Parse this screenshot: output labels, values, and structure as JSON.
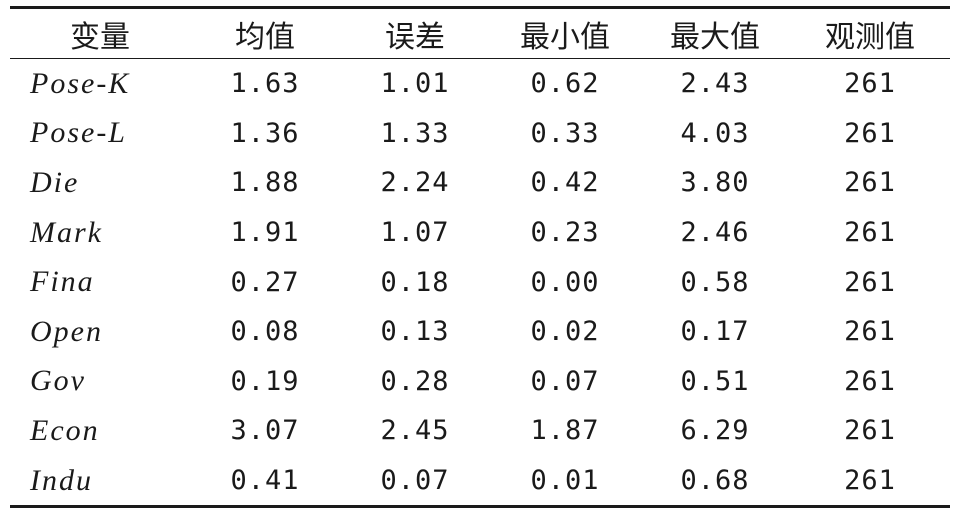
{
  "table": {
    "headers": [
      "变量",
      "均值",
      "误差",
      "最小值",
      "最大值",
      "观测值"
    ],
    "rows": [
      [
        "Pose-K",
        "1.63",
        "1.01",
        "0.62",
        "2.43",
        "261"
      ],
      [
        "Pose-L",
        "1.36",
        "1.33",
        "0.33",
        "4.03",
        "261"
      ],
      [
        "Die",
        "1.88",
        "2.24",
        "0.42",
        "3.80",
        "261"
      ],
      [
        "Mark",
        "1.91",
        "1.07",
        "0.23",
        "2.46",
        "261"
      ],
      [
        "Fina",
        "0.27",
        "0.18",
        "0.00",
        "0.58",
        "261"
      ],
      [
        "Open",
        "0.08",
        "0.13",
        "0.02",
        "0.17",
        "261"
      ],
      [
        "Gov",
        "0.19",
        "0.28",
        "0.07",
        "0.51",
        "261"
      ],
      [
        "Econ",
        "3.07",
        "2.45",
        "1.87",
        "6.29",
        "261"
      ],
      [
        "Indu",
        "0.41",
        "0.07",
        "0.01",
        "0.68",
        "261"
      ]
    ]
  }
}
